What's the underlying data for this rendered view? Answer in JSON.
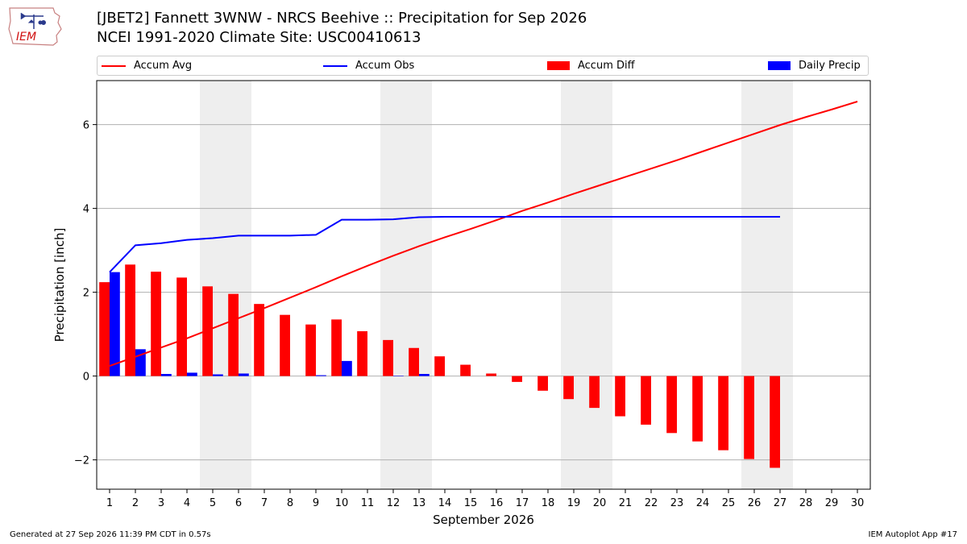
{
  "logo": {
    "text": "IEM"
  },
  "header": {
    "title_line1": "[JBET2] Fannett 3WNW - NRCS Beehive :: Precipitation for Sep 2026",
    "title_line2": "NCEI 1991-2020 Climate Site: USC00410613"
  },
  "legend": {
    "items": [
      {
        "label": "Accum Avg",
        "kind": "line",
        "color": "#ff0000"
      },
      {
        "label": "Accum Obs",
        "kind": "line",
        "color": "#0000ff"
      },
      {
        "label": "Accum Diff",
        "kind": "patch",
        "color": "#ff0000"
      },
      {
        "label": "Daily Precip",
        "kind": "patch",
        "color": "#0000ff"
      }
    ]
  },
  "footer": {
    "left": "Generated at 27 Sep 2026 11:39 PM CDT in 0.57s",
    "right": "IEM Autoplot App #17"
  },
  "chart_data": {
    "type": "bar",
    "xlabel": "September 2026",
    "ylabel": "Precipitation [inch]",
    "ylim": [
      -2.7,
      7.05
    ],
    "xlim": [
      0.5,
      30.5
    ],
    "grid": "horizontal",
    "legend_position": "top",
    "x": [
      1,
      2,
      3,
      4,
      5,
      6,
      7,
      8,
      9,
      10,
      11,
      12,
      13,
      14,
      15,
      16,
      17,
      18,
      19,
      20,
      21,
      22,
      23,
      24,
      25,
      26,
      27,
      28,
      29,
      30
    ],
    "x_tick_labels": [
      "1",
      "2",
      "3",
      "4",
      "5",
      "6",
      "7",
      "8",
      "9",
      "10",
      "11",
      "12",
      "13",
      "14",
      "15",
      "16",
      "17",
      "18",
      "19",
      "20",
      "21",
      "22",
      "23",
      "24",
      "25",
      "26",
      "27",
      "28",
      "29",
      "30"
    ],
    "y_ticks": [
      -2,
      0,
      2,
      4,
      6
    ],
    "y_tick_labels": [
      "−2",
      "0",
      "2",
      "4",
      "6"
    ],
    "weekend_shading": [
      [
        4.5,
        6.5
      ],
      [
        11.5,
        13.5
      ],
      [
        18.5,
        20.5
      ],
      [
        25.5,
        27.5
      ]
    ],
    "series": [
      {
        "name": "Accum Avg",
        "kind": "line",
        "color": "#ff0000",
        "x": [
          1,
          2,
          3,
          4,
          5,
          6,
          7,
          8,
          9,
          10,
          11,
          12,
          13,
          14,
          15,
          16,
          17,
          18,
          19,
          20,
          21,
          22,
          23,
          24,
          25,
          26,
          27,
          28,
          29,
          30
        ],
        "values": [
          0.24,
          0.46,
          0.68,
          0.9,
          1.14,
          1.38,
          1.62,
          1.87,
          2.12,
          2.38,
          2.63,
          2.87,
          3.1,
          3.31,
          3.51,
          3.72,
          3.94,
          4.14,
          4.35,
          4.55,
          4.75,
          4.95,
          5.15,
          5.36,
          5.57,
          5.78,
          5.99,
          6.18,
          6.36,
          6.55
        ]
      },
      {
        "name": "Accum Obs",
        "kind": "line",
        "color": "#0000ff",
        "x": [
          1,
          2,
          3,
          4,
          5,
          6,
          7,
          8,
          9,
          10,
          11,
          12,
          13,
          14,
          15,
          16,
          17,
          18,
          19,
          20,
          21,
          22,
          23,
          24,
          25,
          26,
          27
        ],
        "values": [
          2.48,
          3.12,
          3.17,
          3.25,
          3.29,
          3.35,
          3.35,
          3.35,
          3.37,
          3.73,
          3.73,
          3.74,
          3.79,
          3.8,
          3.8,
          3.8,
          3.8,
          3.8,
          3.8,
          3.8,
          3.8,
          3.8,
          3.8,
          3.8,
          3.8,
          3.8,
          3.8
        ]
      },
      {
        "name": "Accum Diff",
        "kind": "bar",
        "color": "#ff0000",
        "x": [
          1,
          2,
          3,
          4,
          5,
          6,
          7,
          8,
          9,
          10,
          11,
          12,
          13,
          14,
          15,
          16,
          17,
          18,
          19,
          20,
          21,
          22,
          23,
          24,
          25,
          26,
          27
        ],
        "values": [
          2.24,
          2.66,
          2.49,
          2.35,
          2.14,
          1.96,
          1.72,
          1.46,
          1.23,
          1.35,
          1.07,
          0.86,
          0.67,
          0.47,
          0.27,
          0.06,
          -0.14,
          -0.35,
          -0.55,
          -0.76,
          -0.96,
          -1.16,
          -1.36,
          -1.56,
          -1.77,
          -1.98,
          -2.19
        ]
      },
      {
        "name": "Daily Precip",
        "kind": "bar",
        "color": "#0000ff",
        "x": [
          1,
          2,
          3,
          4,
          5,
          6,
          7,
          8,
          9,
          10,
          11,
          12,
          13,
          14,
          15,
          16,
          17,
          18,
          19,
          20,
          21,
          22,
          23,
          24,
          25,
          26,
          27
        ],
        "values": [
          2.48,
          0.64,
          0.05,
          0.08,
          0.04,
          0.06,
          0,
          0,
          0.02,
          0.36,
          0,
          0.01,
          0.05,
          0,
          0,
          0,
          0,
          0,
          0,
          0,
          0,
          0,
          0,
          0,
          0,
          0,
          0
        ]
      }
    ]
  }
}
